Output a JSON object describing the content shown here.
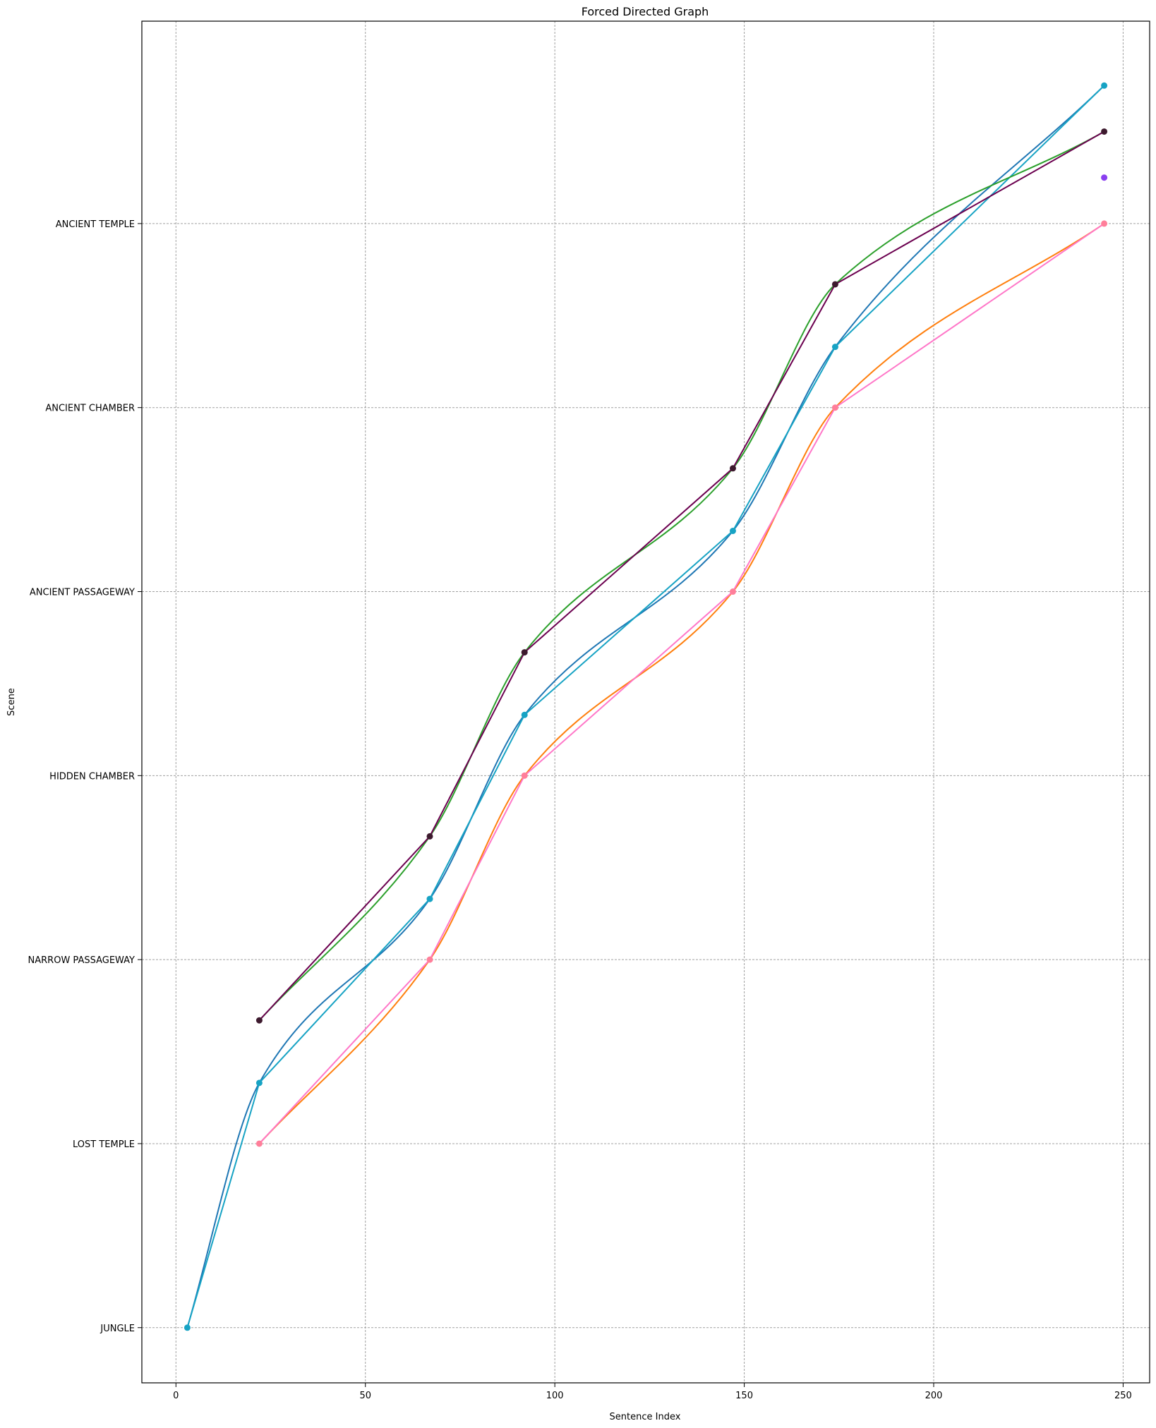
{
  "chart_data": {
    "type": "line",
    "title": "Forced Directed Graph",
    "xlabel": "Sentence Index",
    "ylabel": "Scene",
    "xlim": [
      -9,
      257
    ],
    "ylim": [
      -0.3,
      7.1
    ],
    "grid": true,
    "x_ticks": [
      0,
      50,
      100,
      150,
      200,
      250
    ],
    "y_ticks": [
      "JUNGLE",
      "LOST TEMPLE",
      "NARROW PASSAGEWAY",
      "HIDDEN CHAMBER",
      "ANCIENT PASSAGEWAY",
      "ANCIENT CHAMBER",
      "ANCIENT TEMPLE"
    ],
    "series": [
      {
        "color": "#1f77b4",
        "style": "smooth",
        "markers": false,
        "x": [
          3,
          22,
          67,
          92,
          147,
          174,
          245
        ],
        "y": [
          0,
          1.33,
          2.33,
          3.33,
          4.33,
          5.33,
          6.75
        ]
      },
      {
        "color": "#17a3c4",
        "style": "straight",
        "markers": true,
        "x": [
          3,
          22,
          67,
          92,
          147,
          174,
          245
        ],
        "y": [
          0,
          1.33,
          2.33,
          3.33,
          4.33,
          5.33,
          6.75
        ]
      },
      {
        "color": "#2ca02c",
        "style": "smooth",
        "markers": false,
        "x": [
          22,
          67,
          92,
          147,
          174,
          245
        ],
        "y": [
          1.67,
          2.67,
          3.67,
          4.67,
          5.67,
          6.5
        ]
      },
      {
        "color": "#6b004f",
        "style": "straight",
        "markers": true,
        "marker_color": "#3d1a2e",
        "x": [
          22,
          67,
          92,
          147,
          174,
          245
        ],
        "y": [
          1.67,
          2.67,
          3.67,
          4.67,
          5.67,
          6.5
        ]
      },
      {
        "color": "#ff7f0e",
        "style": "smooth",
        "markers": false,
        "x": [
          22,
          67,
          92,
          147,
          174,
          245
        ],
        "y": [
          1,
          2,
          3,
          4,
          5,
          6
        ]
      },
      {
        "color": "#ff77c8",
        "style": "straight",
        "markers": true,
        "marker_color": "#ff7f9a",
        "x": [
          22,
          67,
          92,
          147,
          174,
          245
        ],
        "y": [
          1,
          2,
          3,
          4,
          5,
          6
        ]
      },
      {
        "color": "#8a3ff0",
        "style": "none",
        "markers": true,
        "x": [
          245
        ],
        "y": [
          6.25
        ]
      }
    ]
  }
}
